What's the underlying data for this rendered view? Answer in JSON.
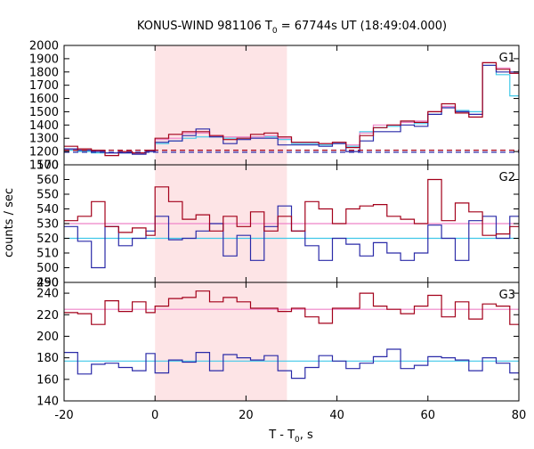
{
  "chart_data": {
    "type": "line",
    "title_parts": {
      "pre": "KONUS-WIND 981106 T",
      "sub": "0",
      "post": " = 67744s UT (18:49:04.000)"
    },
    "xlabel_parts": {
      "pre": "T - T",
      "sub": "0",
      "post": ", s"
    },
    "ylabel": "counts / sec",
    "xlim": [
      -20,
      80
    ],
    "xticks": [
      -20,
      0,
      20,
      40,
      60,
      80
    ],
    "highlight_interval": [
      0,
      29
    ],
    "colors": {
      "red": "#a3001a",
      "blue": "#2a2aa8",
      "pink": "#ee82c8",
      "cyan": "#40c8e8",
      "shade": "#fde4e6"
    },
    "panels": [
      {
        "name": "G1",
        "ylim": [
          1100,
          2000
        ],
        "yticks": [
          1100,
          1200,
          1300,
          1400,
          1500,
          1600,
          1700,
          1800,
          1900,
          2000
        ],
        "bin_edges": [
          -20,
          -17,
          -14,
          -11,
          -8,
          -5,
          -2,
          0,
          3,
          6,
          9,
          12,
          15,
          18,
          21,
          24,
          27,
          30,
          33,
          36,
          39,
          42,
          45,
          48,
          51,
          54,
          57,
          60,
          63,
          66,
          69,
          72,
          75,
          78,
          80
        ],
        "series": [
          {
            "color": "red",
            "values": [
              1240,
              1220,
              1210,
              1170,
              1200,
              1190,
              1210,
              1300,
              1330,
              1350,
              1350,
              1320,
              1290,
              1300,
              1330,
              1340,
              1310,
              1270,
              1270,
              1260,
              1270,
              1230,
              1320,
              1380,
              1400,
              1430,
              1420,
              1500,
              1560,
              1490,
              1460,
              1870,
              1820,
              1790
            ]
          },
          {
            "color": "blue",
            "values": [
              1220,
              1210,
              1200,
              1190,
              1190,
              1180,
              1200,
              1270,
              1280,
              1320,
              1370,
              1310,
              1260,
              1290,
              1300,
              1300,
              1250,
              1250,
              1250,
              1240,
              1260,
              1200,
              1280,
              1350,
              1350,
              1400,
              1390,
              1480,
              1530,
              1500,
              1480,
              1850,
              1800,
              1800
            ]
          },
          {
            "color": "pink",
            "values": [
              1220,
              1210,
              1200,
              1190,
              1200,
              1190,
              1210,
              1290,
              1300,
              1340,
              1340,
              1320,
              1310,
              1310,
              1310,
              1320,
              1300,
              1270,
              1270,
              1260,
              1270,
              1250,
              1340,
              1400,
              1400,
              1420,
              1430,
              1500,
              1540,
              1500,
              1480,
              1870,
              1830,
              1790
            ]
          },
          {
            "color": "cyan",
            "values": [
              1210,
              1200,
              1190,
              1190,
              1190,
              1190,
              1200,
              1260,
              1280,
              1300,
              1310,
              1310,
              1300,
              1300,
              1310,
              1310,
              1290,
              1260,
              1260,
              1250,
              1260,
              1240,
              1350,
              1380,
              1390,
              1420,
              1410,
              1480,
              1540,
              1510,
              1500,
              1850,
              1780,
              1620
            ]
          }
        ],
        "background_lines": [
          {
            "color": "red",
            "value": 1210
          },
          {
            "color": "blue",
            "value": 1195
          }
        ]
      },
      {
        "name": "G2",
        "ylim": [
          490,
          570
        ],
        "yticks": [
          490,
          500,
          510,
          520,
          530,
          540,
          550,
          560
        ],
        "bin_edges": [
          -20,
          -17,
          -14,
          -11,
          -8,
          -5,
          -2,
          0,
          3,
          6,
          9,
          12,
          15,
          18,
          21,
          24,
          27,
          30,
          33,
          36,
          39,
          42,
          45,
          48,
          51,
          54,
          57,
          60,
          63,
          66,
          69,
          72,
          75,
          78,
          80
        ],
        "series": [
          {
            "color": "red",
            "values": [
              532,
              535,
              545,
              528,
              524,
              527,
              522,
              555,
              545,
              533,
              536,
              525,
              535,
              528,
              538,
              525,
              535,
              525,
              545,
              540,
              530,
              540,
              542,
              543,
              535,
              533,
              530,
              560,
              532,
              544,
              538,
              522,
              523,
              528
            ]
          },
          {
            "color": "blue",
            "values": [
              528,
              518,
              500,
              528,
              515,
              520,
              525,
              535,
              519,
              520,
              525,
              530,
              508,
              522,
              505,
              528,
              542,
              525,
              515,
              505,
              520,
              516,
              508,
              517,
              510,
              505,
              510,
              529,
              520,
              505,
              532,
              535,
              520,
              535
            ]
          },
          {
            "color": "pink",
            "values": [
              530,
              530,
              530,
              530,
              530,
              530,
              530,
              530,
              530,
              530,
              530,
              530,
              530,
              530,
              530,
              530,
              530,
              530,
              530,
              530,
              530,
              530,
              530,
              530,
              530,
              530,
              530,
              530,
              530,
              530,
              530,
              530,
              530,
              530
            ]
          },
          {
            "color": "cyan",
            "values": [
              520,
              520,
              520,
              520,
              520,
              520,
              520,
              520,
              520,
              520,
              520,
              520,
              520,
              520,
              520,
              520,
              520,
              520,
              520,
              520,
              520,
              520,
              520,
              520,
              520,
              520,
              520,
              520,
              520,
              520,
              520,
              520,
              520,
              520
            ]
          }
        ]
      },
      {
        "name": "G3",
        "ylim": [
          140,
          250
        ],
        "yticks": [
          140,
          160,
          180,
          200,
          220,
          240
        ],
        "bin_edges": [
          -20,
          -17,
          -14,
          -11,
          -8,
          -5,
          -2,
          0,
          3,
          6,
          9,
          12,
          15,
          18,
          21,
          24,
          27,
          30,
          33,
          36,
          39,
          42,
          45,
          48,
          51,
          54,
          57,
          60,
          63,
          66,
          69,
          72,
          75,
          78,
          80
        ],
        "series": [
          {
            "color": "red",
            "values": [
              222,
              221,
              211,
              233,
              223,
              232,
              222,
              228,
              235,
              236,
              242,
              232,
              236,
              232,
              226,
              226,
              223,
              226,
              218,
              212,
              226,
              226,
              240,
              228,
              225,
              221,
              228,
              238,
              218,
              232,
              216,
              230,
              228,
              211
            ]
          },
          {
            "color": "blue",
            "values": [
              185,
              165,
              174,
              175,
              171,
              168,
              184,
              166,
              178,
              176,
              185,
              168,
              183,
              180,
              178,
              182,
              168,
              161,
              171,
              182,
              177,
              170,
              175,
              181,
              188,
              170,
              173,
              181,
              180,
              178,
              168,
              180,
              175,
              166
            ]
          },
          {
            "color": "pink",
            "values": [
              225,
              225,
              225,
              225,
              225,
              225,
              225,
              225,
              225,
              225,
              225,
              225,
              225,
              225,
              225,
              225,
              225,
              225,
              225,
              225,
              225,
              225,
              225,
              225,
              225,
              225,
              225,
              225,
              225,
              225,
              225,
              225,
              225,
              225
            ]
          },
          {
            "color": "cyan",
            "values": [
              177,
              177,
              177,
              177,
              177,
              177,
              177,
              177,
              177,
              177,
              177,
              177,
              177,
              177,
              177,
              177,
              177,
              177,
              177,
              177,
              177,
              177,
              177,
              177,
              177,
              177,
              177,
              177,
              177,
              177,
              177,
              177,
              177,
              177
            ]
          }
        ]
      }
    ]
  }
}
